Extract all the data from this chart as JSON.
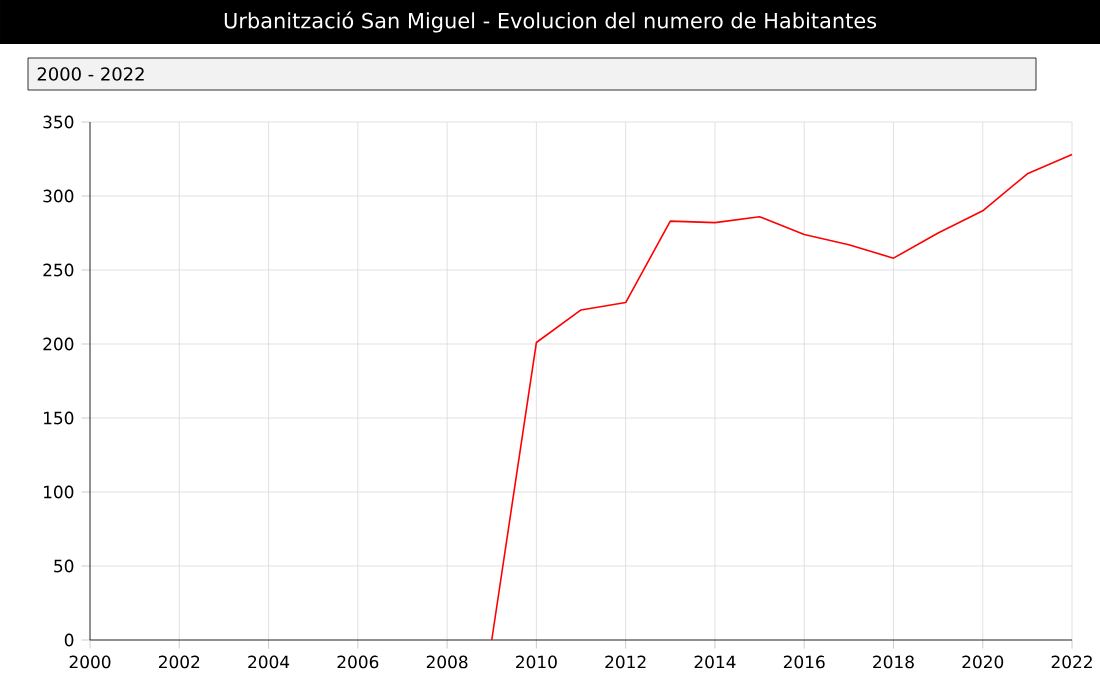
{
  "chart_data": {
    "type": "line",
    "title": "Urbanització San Miguel - Evolucion del numero de Habitantes",
    "subtitle": "2000 - 2022",
    "x": [
      2009,
      2010,
      2011,
      2012,
      2013,
      2014,
      2015,
      2016,
      2017,
      2018,
      2019,
      2020,
      2021,
      2022
    ],
    "series": [
      {
        "color": "#ff0000",
        "values": [
          0,
          201,
          223,
          228,
          283,
          282,
          286,
          274,
          267,
          258,
          275,
          290,
          315,
          328
        ]
      }
    ],
    "xlim": [
      2000,
      2022
    ],
    "ylim": [
      0,
      350
    ],
    "xticks": [
      2000,
      2002,
      2004,
      2006,
      2008,
      2010,
      2012,
      2014,
      2016,
      2018,
      2020,
      2022
    ],
    "yticks": [
      0,
      50,
      100,
      150,
      200,
      250,
      300,
      350
    ],
    "grid": true,
    "marker": "none",
    "line_style": "solid"
  }
}
